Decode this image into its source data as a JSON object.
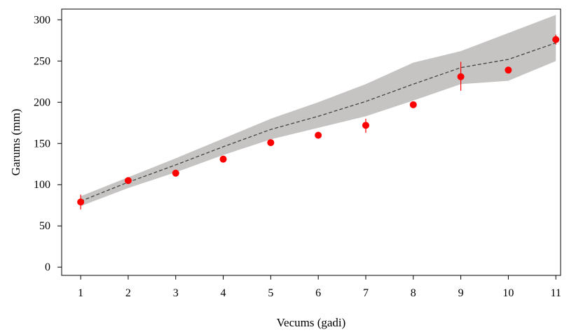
{
  "chart_data": {
    "type": "scatter",
    "title": "",
    "xlabel": "Vecums (gadi)",
    "ylabel": "Garums  (mm)",
    "xlim": [
      0.6,
      11.1
    ],
    "ylim": [
      -10,
      313
    ],
    "x_ticks": [
      1,
      2,
      3,
      4,
      5,
      6,
      7,
      8,
      9,
      10,
      11
    ],
    "y_ticks": [
      0,
      50,
      100,
      150,
      200,
      250,
      300
    ],
    "grid": false,
    "legend": "none",
    "series": [
      {
        "type": "points",
        "color": "#ff0000",
        "x": [
          1,
          2,
          3,
          4,
          5,
          6,
          7,
          8,
          9,
          10,
          11
        ],
        "y": [
          79,
          105,
          114,
          131,
          151,
          160,
          172,
          197,
          231,
          239,
          276
        ],
        "error_low": [
          70,
          103,
          111,
          129,
          149,
          158,
          163,
          195,
          214,
          237,
          270
        ],
        "error_high": [
          88,
          107,
          117,
          133,
          153,
          162,
          180,
          199,
          249,
          241,
          282
        ]
      },
      {
        "type": "dashed-line",
        "color": "#444444",
        "x": [
          1,
          2,
          3,
          4,
          5,
          6,
          7,
          8,
          9,
          10,
          11
        ],
        "y": [
          80,
          103,
          124,
          146,
          167,
          183,
          201,
          222,
          242,
          252,
          272
        ]
      },
      {
        "type": "band",
        "color": "#c6c3c3",
        "x": [
          1,
          2,
          3,
          4,
          5,
          6,
          7,
          8,
          9,
          10,
          11
        ],
        "upper": [
          86,
          109,
          132,
          156,
          180,
          200,
          222,
          248,
          262,
          284,
          306
        ],
        "lower": [
          74,
          96,
          115,
          136,
          155,
          169,
          183,
          202,
          222,
          226,
          250
        ]
      }
    ]
  }
}
